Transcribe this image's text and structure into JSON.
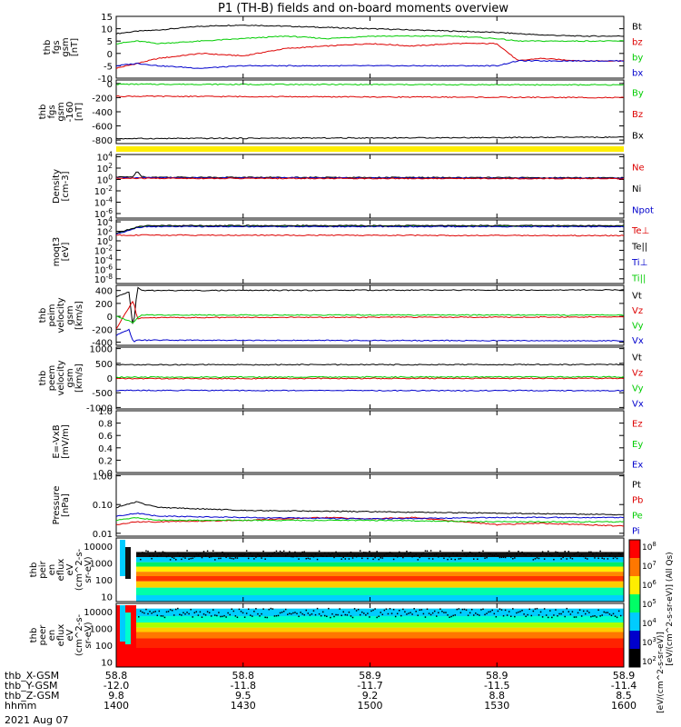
{
  "title": "P1 (TH-B) fields and on-board moments overview",
  "date": "2021 Aug 07",
  "colors": {
    "black": "#000000",
    "red": "#dd0000",
    "green": "#00cc00",
    "blue": "#0000cc",
    "yellow": "#ffee00"
  },
  "chart_data": [
    {
      "type": "line",
      "panel": "fgs_gsm",
      "ylabel": [
        "thb",
        "fgs",
        "gsm",
        "[nT]"
      ],
      "yticks": [
        "15",
        "10",
        "5",
        "0",
        "-5",
        "-10"
      ],
      "ylim": [
        -10,
        15
      ],
      "legend": [
        {
          "name": "Bt",
          "color": "black"
        },
        {
          "name": "bz",
          "color": "red"
        },
        {
          "name": "by",
          "color": "green"
        },
        {
          "name": "bx",
          "color": "blue"
        }
      ],
      "series": [
        {
          "name": "Bt",
          "color": "black",
          "x": [
            1400,
            1405,
            1410,
            1420,
            1430,
            1440,
            1450,
            1500,
            1510,
            1520,
            1530,
            1535,
            1540,
            1550,
            1600
          ],
          "y": [
            8,
            9,
            9.5,
            11,
            11.5,
            11,
            10.5,
            10,
            9.5,
            9,
            8.5,
            8,
            7.5,
            7,
            7
          ]
        },
        {
          "name": "bz",
          "color": "red",
          "x": [
            1400,
            1405,
            1410,
            1420,
            1430,
            1440,
            1450,
            1500,
            1510,
            1520,
            1530,
            1535,
            1540,
            1550,
            1600
          ],
          "y": [
            -6,
            -4,
            -2,
            0,
            -1,
            2,
            3,
            4,
            3,
            4,
            4,
            -3,
            -2,
            -3,
            -3
          ]
        },
        {
          "name": "by",
          "color": "green",
          "x": [
            1400,
            1405,
            1410,
            1420,
            1430,
            1440,
            1450,
            1500,
            1510,
            1520,
            1530,
            1535,
            1540,
            1550,
            1600
          ],
          "y": [
            4,
            5,
            4,
            5,
            6,
            7,
            6,
            7,
            7,
            7,
            6,
            5,
            5,
            5,
            5
          ]
        },
        {
          "name": "bx",
          "color": "blue",
          "x": [
            1400,
            1405,
            1410,
            1420,
            1430,
            1440,
            1450,
            1500,
            1510,
            1520,
            1530,
            1535,
            1540,
            1550,
            1600
          ],
          "y": [
            -5,
            -4,
            -5,
            -6,
            -5,
            -5,
            -5,
            -5,
            -5,
            -5,
            -5,
            -3,
            -3,
            -3,
            -3
          ]
        }
      ]
    },
    {
      "type": "line",
      "panel": "fgs_gsm_160",
      "ylabel": [
        "thb",
        "fgs",
        "gsm",
        "-160",
        "[nT]"
      ],
      "yticks": [
        "0",
        "-200",
        "-400",
        "-600",
        "-800"
      ],
      "ylim": [
        -850,
        50
      ],
      "legend": [
        {
          "name": "By",
          "color": "green"
        },
        {
          "name": "Bz",
          "color": "red"
        },
        {
          "name": "Bx",
          "color": "black"
        }
      ],
      "series": [
        {
          "name": "By",
          "color": "green",
          "x": [
            1400,
            1600
          ],
          "y": [
            -10,
            -20
          ]
        },
        {
          "name": "Bz",
          "color": "red",
          "x": [
            1400,
            1600
          ],
          "y": [
            -180,
            -200
          ]
        },
        {
          "name": "Bx",
          "color": "black",
          "x": [
            1400,
            1600
          ],
          "y": [
            -780,
            -760
          ]
        }
      ]
    },
    {
      "type": "line",
      "panel": "density",
      "scale": "log",
      "ylabel": [
        "Density",
        "[cm-3]"
      ],
      "yticks": [
        "10^4",
        "10^2",
        "10^0",
        "10^-2",
        "10^-4",
        "10^-6"
      ],
      "ylim_exp": [
        -6.8,
        4.4
      ],
      "legend": [
        {
          "name": "Ne",
          "color": "red"
        },
        {
          "name": "Ni",
          "color": "black"
        },
        {
          "name": "Npot",
          "color": "blue"
        }
      ],
      "series": [
        {
          "name": "Ni",
          "color": "black",
          "x": [
            1400,
            1404,
            1405,
            1406,
            1407,
            1600
          ],
          "y_exp": [
            0.4,
            0.5,
            1.5,
            0.6,
            0.4,
            0.3
          ]
        },
        {
          "name": "Npot",
          "color": "blue",
          "x": [
            1400,
            1600
          ],
          "y_exp": [
            0.3,
            0.2
          ]
        },
        {
          "name": "Ne",
          "color": "red",
          "x": [
            1400,
            1600
          ],
          "y_exp": [
            0.2,
            0.15
          ]
        }
      ]
    },
    {
      "type": "line",
      "panel": "moqt3",
      "scale": "log",
      "ylabel": [
        "moqt3",
        "[eV]"
      ],
      "yticks": [
        "10^4",
        "10^2",
        "10^0",
        "10^-2",
        "10^-4",
        "10^-6",
        "10^-8"
      ],
      "ylim_exp": [
        -9,
        4.4
      ],
      "legend": [
        {
          "name": "Te⊥",
          "color": "red"
        },
        {
          "name": "Te||",
          "color": "black"
        },
        {
          "name": "Ti⊥",
          "color": "blue"
        },
        {
          "name": "Ti||",
          "color": "green"
        }
      ],
      "series": [
        {
          "name": "Ti||",
          "color": "green",
          "x": [
            1400,
            1405,
            1407,
            1600
          ],
          "y_exp": [
            1.5,
            2.9,
            3.1,
            3.1
          ]
        },
        {
          "name": "Ti⊥",
          "color": "blue",
          "x": [
            1400,
            1405,
            1407,
            1600
          ],
          "y_exp": [
            1.4,
            2.8,
            3.0,
            3.0
          ]
        },
        {
          "name": "Te||",
          "color": "black",
          "x": [
            1400,
            1405,
            1407,
            1600
          ],
          "y_exp": [
            1.6,
            2.9,
            3.2,
            3.2
          ]
        },
        {
          "name": "Te⊥",
          "color": "red",
          "x": [
            1400,
            1600
          ],
          "y_exp": [
            1.2,
            1.1
          ]
        }
      ]
    },
    {
      "type": "line",
      "panel": "peim_velocity",
      "ylabel": [
        "thb",
        "peim",
        "velocity",
        "gsm",
        "[km/s]"
      ],
      "yticks": [
        "400",
        "200",
        "0",
        "-200",
        "-400"
      ],
      "ylim": [
        -450,
        480
      ],
      "legend": [
        {
          "name": "Vt",
          "color": "black"
        },
        {
          "name": "Vz",
          "color": "red"
        },
        {
          "name": "Vy",
          "color": "green"
        },
        {
          "name": "Vx",
          "color": "blue"
        }
      ],
      "series": [
        {
          "name": "Vt",
          "color": "black",
          "x": [
            1400,
            1403,
            1404,
            1405,
            1406,
            1600
          ],
          "y": [
            300,
            380,
            -200,
            450,
            400,
            410
          ]
        },
        {
          "name": "Vz",
          "color": "red",
          "x": [
            1400,
            1404,
            1405,
            1406,
            1600
          ],
          "y": [
            -200,
            250,
            -50,
            -20,
            -10
          ]
        },
        {
          "name": "Vy",
          "color": "green",
          "x": [
            1400,
            1404,
            1405,
            1406,
            1600
          ],
          "y": [
            10,
            -100,
            -30,
            20,
            20
          ]
        },
        {
          "name": "Vx",
          "color": "blue",
          "x": [
            1400,
            1403,
            1404,
            1405,
            1600
          ],
          "y": [
            -300,
            -200,
            -400,
            -370,
            -380
          ]
        }
      ]
    },
    {
      "type": "line",
      "panel": "peem_velocity",
      "ylabel": [
        "thb",
        "peem",
        "velocity",
        "gsm",
        "[km/s]"
      ],
      "yticks": [
        "1000",
        "500",
        "0",
        "-500",
        "-1000"
      ],
      "ylim": [
        -1050,
        1050
      ],
      "legend": [
        {
          "name": "Vt",
          "color": "black"
        },
        {
          "name": "Vz",
          "color": "red"
        },
        {
          "name": "Vy",
          "color": "green"
        },
        {
          "name": "Vx",
          "color": "blue"
        }
      ],
      "series": [
        {
          "name": "Vt",
          "color": "black",
          "x": [
            1400,
            1600
          ],
          "y": [
            450,
            460
          ]
        },
        {
          "name": "Vz",
          "color": "red",
          "x": [
            1400,
            1600
          ],
          "y": [
            -20,
            -10
          ]
        },
        {
          "name": "Vy",
          "color": "green",
          "x": [
            1400,
            1600
          ],
          "y": [
            30,
            40
          ]
        },
        {
          "name": "Vx",
          "color": "blue",
          "x": [
            1400,
            1600
          ],
          "y": [
            -420,
            -430
          ]
        }
      ]
    },
    {
      "type": "line",
      "panel": "e_field",
      "ylabel": [
        "E=-VxB",
        "[mV/m]"
      ],
      "yticks": [
        "1.0",
        "0.8",
        "0.6",
        "0.4",
        "0.2",
        "0.0"
      ],
      "ylim": [
        0,
        1
      ],
      "legend": [
        {
          "name": "Ez",
          "color": "red"
        },
        {
          "name": "Ey",
          "color": "green"
        },
        {
          "name": "Ex",
          "color": "blue"
        }
      ],
      "series": []
    },
    {
      "type": "line",
      "panel": "pressure",
      "scale": "log",
      "ylabel": [
        "Pressure",
        "[nPa]"
      ],
      "yticks": [
        "1.00",
        "0.10",
        "0.01"
      ],
      "ylim_exp": [
        -2.1,
        0.05
      ],
      "legend": [
        {
          "name": "Pt",
          "color": "black"
        },
        {
          "name": "Pb",
          "color": "red"
        },
        {
          "name": "Pe",
          "color": "green"
        },
        {
          "name": "Pi",
          "color": "blue"
        }
      ],
      "series": [
        {
          "name": "Pt",
          "color": "black",
          "x": [
            1400,
            1405,
            1407,
            1410,
            1430,
            1500,
            1530,
            1600
          ],
          "y_exp": [
            -1.1,
            -0.9,
            -1.0,
            -1.1,
            -1.2,
            -1.25,
            -1.3,
            -1.35
          ]
        },
        {
          "name": "Pb",
          "color": "red",
          "x": [
            1400,
            1405,
            1410,
            1430,
            1450,
            1500,
            1510,
            1530,
            1540,
            1600
          ],
          "y_exp": [
            -1.7,
            -1.6,
            -1.6,
            -1.55,
            -1.45,
            -1.5,
            -1.45,
            -1.7,
            -1.65,
            -1.75
          ]
        },
        {
          "name": "Pe",
          "color": "green",
          "x": [
            1400,
            1405,
            1407,
            1410,
            1430,
            1500,
            1530,
            1600
          ],
          "y_exp": [
            -1.55,
            -1.45,
            -1.5,
            -1.55,
            -1.55,
            -1.55,
            -1.6,
            -1.6
          ]
        },
        {
          "name": "Pi",
          "color": "blue",
          "x": [
            1400,
            1405,
            1407,
            1410,
            1430,
            1500,
            1530,
            1600
          ],
          "y_exp": [
            -1.4,
            -1.3,
            -1.35,
            -1.4,
            -1.45,
            -1.5,
            -1.45,
            -1.45
          ]
        }
      ]
    },
    {
      "type": "heatmap",
      "panel": "peir_spectrogram",
      "ylabel": [
        "thb",
        "peir",
        "en",
        "eflux",
        "eV",
        "(cm^2-s-",
        "sr-eV)"
      ],
      "yticks": [
        "10000",
        "1000",
        "100",
        "10"
      ],
      "ylim": [
        5,
        30000
      ]
    },
    {
      "type": "heatmap",
      "panel": "peer_spectrogram",
      "ylabel": [
        "thb",
        "peer",
        "en",
        "eflux",
        "eV",
        "(cm^2-s-",
        "sr-eV)"
      ],
      "yticks": [
        "10000",
        "1000",
        "100",
        "10"
      ],
      "ylim": [
        5,
        30000
      ]
    }
  ],
  "colorbar": {
    "ticks": [
      "10^8",
      "10^7",
      "10^6",
      "10^5",
      "10^4",
      "10^3",
      "10^2"
    ],
    "label": "[eV/(cm^2-s-sr-eV)] (All Qs)",
    "label2": "[eV/(cm^2-s-sr-eV)]"
  },
  "xaxis": {
    "rows": [
      {
        "name": "thb_X-GSM",
        "values": [
          "58.8",
          "58.8",
          "58.9",
          "58.9",
          "58.9"
        ]
      },
      {
        "name": "thb_Y-GSM",
        "values": [
          "-12.0",
          "-11.8",
          "-11.7",
          "-11.5",
          "-11.4"
        ]
      },
      {
        "name": "thb_Z-GSM",
        "values": [
          "9.8",
          "9.5",
          "9.2",
          "8.8",
          "8.5"
        ]
      },
      {
        "name": "hhmm",
        "values": [
          "1400",
          "1430",
          "1500",
          "1530",
          "1600"
        ]
      }
    ]
  }
}
